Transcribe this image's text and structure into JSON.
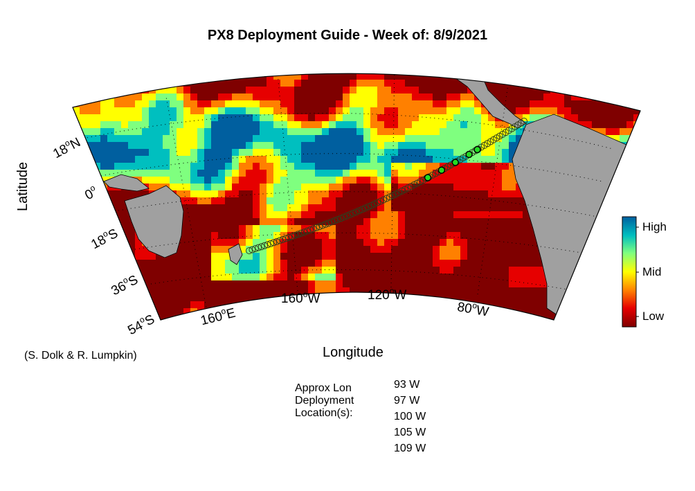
{
  "title": "PX8 Deployment Guide - Week of: 8/9/2021",
  "axes": {
    "xlabel": "Longitude",
    "ylabel": "Latitude",
    "lat_ticks": [
      {
        "value": "18",
        "hemi": "N"
      },
      {
        "value": "0",
        "hemi": ""
      },
      {
        "value": "18",
        "hemi": "S"
      },
      {
        "value": "36",
        "hemi": "S"
      },
      {
        "value": "54",
        "hemi": "S"
      }
    ],
    "lon_ticks": [
      {
        "value": "160",
        "hemi": "E"
      },
      {
        "value": "160",
        "hemi": "W"
      },
      {
        "value": "120",
        "hemi": "W"
      },
      {
        "value": "80",
        "hemi": "W"
      }
    ]
  },
  "colorbar": {
    "labels": [
      "High",
      "Mid",
      "Low"
    ],
    "colors": [
      "#7f0000",
      "#e60000",
      "#ff8000",
      "#ffff00",
      "#7fff7f",
      "#00bfbf",
      "#005f9f"
    ]
  },
  "credit": "(S. Dolk & R. Lumpkin)",
  "deployment": {
    "title_lines": [
      "Approx Lon",
      "Deployment",
      "Location(s):"
    ],
    "locations": [
      "93 W",
      "97 W",
      "100 W",
      "105 W",
      "109 W"
    ]
  },
  "land_color": "#a0a0a0",
  "track_color": "#2f3f1f",
  "deploy_marker_color": "#22dd22"
}
